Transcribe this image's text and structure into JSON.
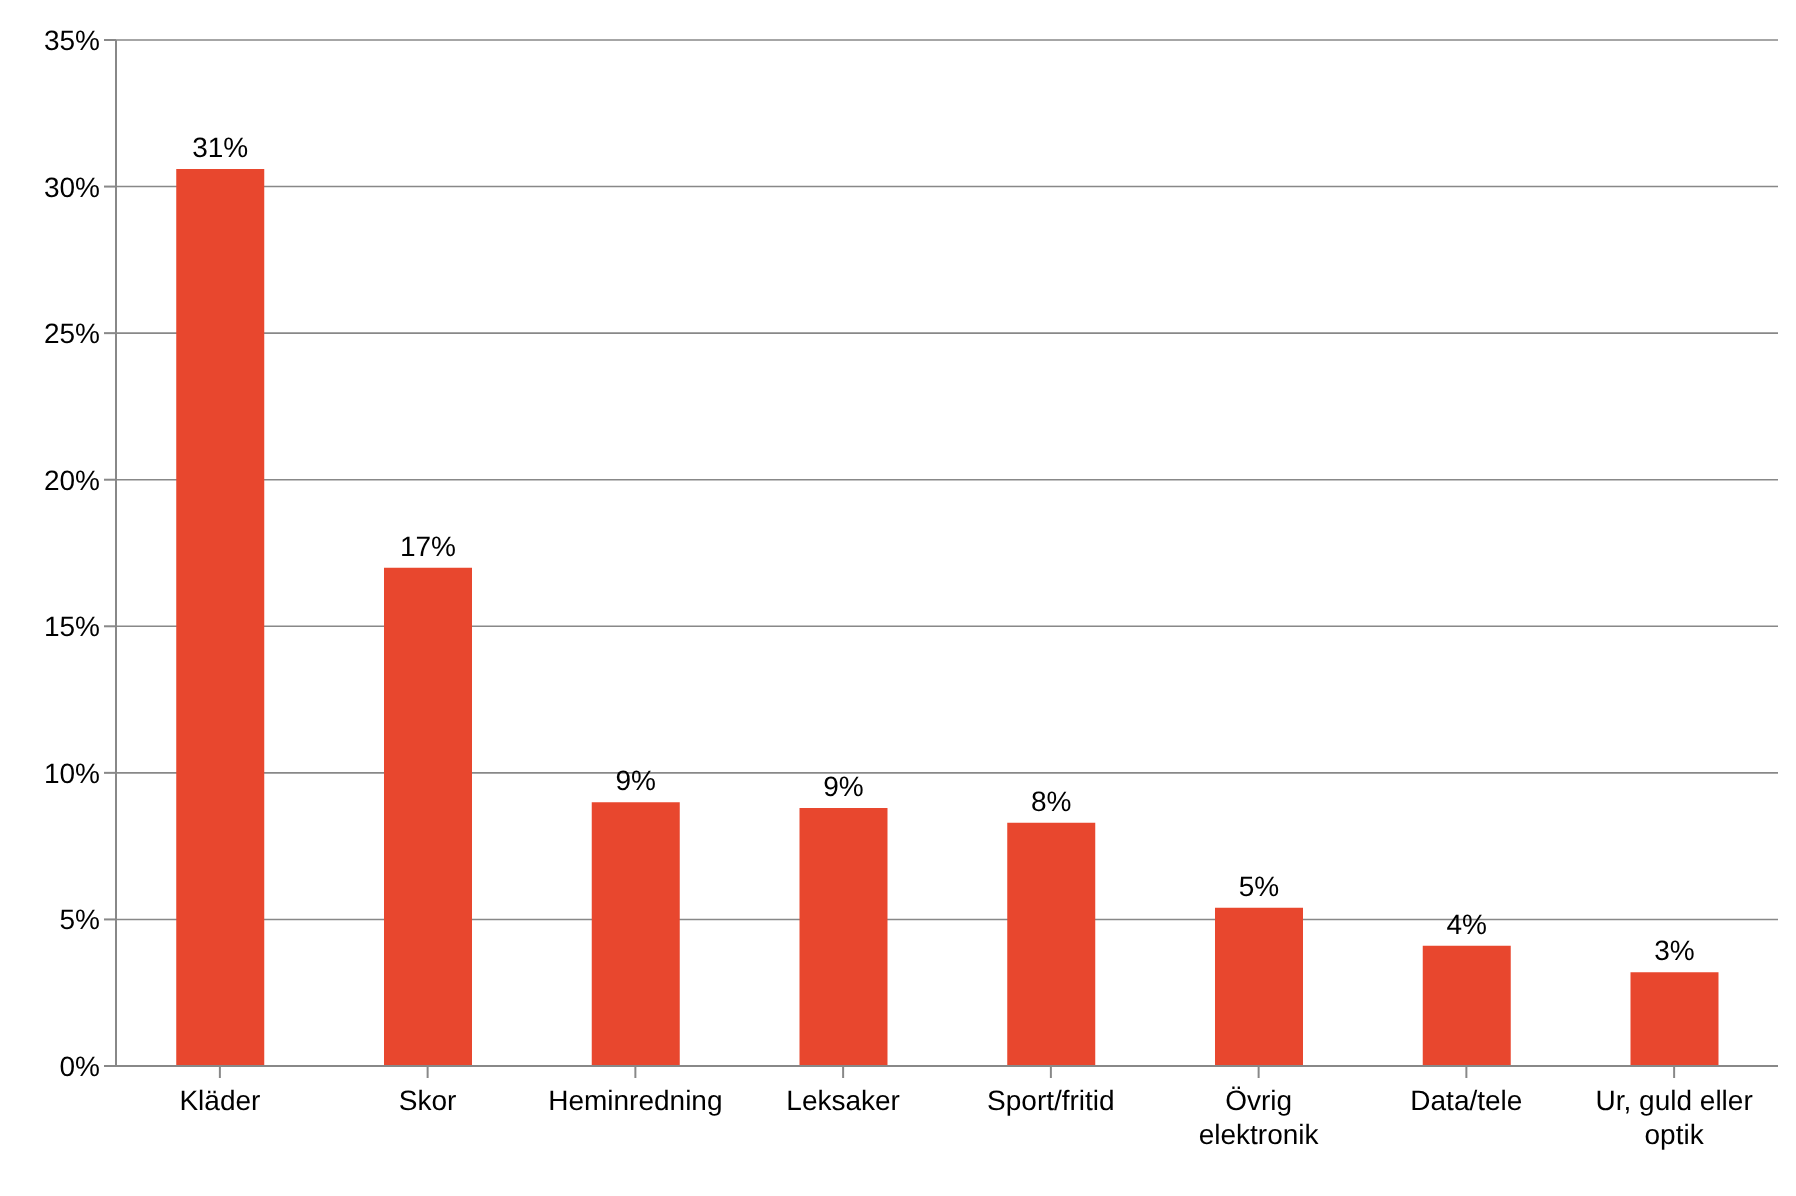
{
  "chart_data": {
    "type": "bar",
    "categories": [
      "Kläder",
      "Skor",
      "Heminredning",
      "Leksaker",
      "Sport/fritid",
      "Övrig elektronik",
      "Data/tele",
      "Ur, guld eller optik"
    ],
    "values": [
      30.6,
      17.0,
      9.0,
      8.8,
      8.3,
      5.4,
      4.1,
      3.2
    ],
    "value_labels": [
      "31%",
      "17%",
      "9%",
      "9%",
      "8%",
      "5%",
      "4%",
      "3%"
    ],
    "color": "#e8472e",
    "ylim": [
      0,
      35
    ],
    "yticks": [
      {
        "value": 0,
        "label": "0%"
      },
      {
        "value": 5,
        "label": "5%"
      },
      {
        "value": 10,
        "label": "10%"
      },
      {
        "value": 15,
        "label": "15%"
      },
      {
        "value": 20,
        "label": "20%"
      },
      {
        "value": 25,
        "label": "25%"
      },
      {
        "value": 30,
        "label": "30%"
      },
      {
        "value": 35,
        "label": "35%"
      }
    ],
    "grid": "y",
    "legend": false
  }
}
